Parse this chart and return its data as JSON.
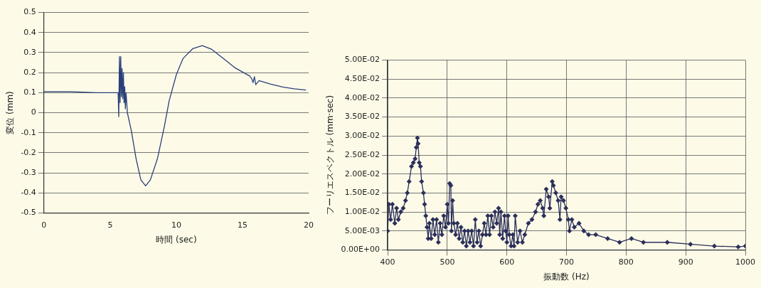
{
  "chart_data": [
    {
      "type": "line",
      "xlabel": "時間 (sec)",
      "ylabel": "変位 (mm)",
      "xlim": [
        0,
        20
      ],
      "xticks": [
        0,
        5,
        10,
        15,
        20
      ],
      "ylim": [
        -0.5,
        0.5
      ],
      "yticks": [
        -0.5,
        -0.4,
        -0.3,
        -0.2,
        -0.1,
        0,
        0.1,
        0.2,
        0.3,
        0.4,
        0.5
      ],
      "grid": "y",
      "legend": false,
      "marker": "none",
      "series": [
        {
          "color": "#2a3f7a",
          "x": [
            0,
            2,
            4,
            5.6,
            5.65,
            5.7,
            5.75,
            5.8,
            5.85,
            5.9,
            5.95,
            6.0,
            6.05,
            6.1,
            6.15,
            6.2,
            6.3,
            6.6,
            6.96,
            7.32,
            7.68,
            8.04,
            8.57,
            9.1,
            9.46,
            10.0,
            10.5,
            11.25,
            11.96,
            12.68,
            13.57,
            14.46,
            15.54,
            15.7,
            15.8,
            15.9,
            16.0,
            16.25,
            17.14,
            18.04,
            18.9,
            19.8
          ],
          "values": [
            0.105,
            0.105,
            0.1,
            0.1,
            -0.02,
            0.28,
            0.05,
            0.28,
            0.08,
            0.22,
            0.07,
            0.2,
            0.05,
            0.13,
            0.02,
            0.1,
            0.0,
            -0.09,
            -0.23,
            -0.335,
            -0.365,
            -0.335,
            -0.23,
            -0.067,
            0.06,
            0.19,
            0.27,
            0.32,
            0.335,
            0.316,
            0.27,
            0.223,
            0.183,
            0.17,
            0.15,
            0.18,
            0.14,
            0.16,
            0.142,
            0.128,
            0.119,
            0.113
          ]
        }
      ]
    },
    {
      "type": "line",
      "xlabel": "振動数 (Hz)",
      "ylabel": "フーリエスペクトル (mm·sec)",
      "xlim": [
        400,
        1000
      ],
      "xticks": [
        400,
        500,
        600,
        700,
        800,
        900,
        1000
      ],
      "ylim": [
        0,
        0.05
      ],
      "yticks": [
        {
          "value": 0,
          "label": "0.00E+00"
        },
        {
          "value": 0.005,
          "label": "5.00E-03"
        },
        {
          "value": 0.01,
          "label": "1.00E-02"
        },
        {
          "value": 0.015,
          "label": "1.50E-02"
        },
        {
          "value": 0.02,
          "label": "2.00E-02"
        },
        {
          "value": 0.025,
          "label": "2.50E-02"
        },
        {
          "value": 0.03,
          "label": "3.00E-02"
        },
        {
          "value": 0.035,
          "label": "3.50E-02"
        },
        {
          "value": 0.04,
          "label": "4.00E-02"
        },
        {
          "value": 0.045,
          "label": "4.50E-02"
        },
        {
          "value": 0.05,
          "label": "5.00E-02"
        }
      ],
      "grid": true,
      "legend": false,
      "marker": "diamond",
      "series": [
        {
          "color": "#2b2f5a",
          "x": [
            400,
            402,
            405,
            408,
            412,
            415,
            418,
            422,
            426,
            430,
            433,
            436,
            440,
            443,
            446,
            448,
            450,
            451,
            453,
            455,
            457,
            460,
            462,
            464,
            466,
            468,
            470,
            473,
            476,
            479,
            482,
            485,
            488,
            491,
            494,
            497,
            500,
            502,
            504,
            506,
            507,
            509,
            511,
            514,
            517,
            520,
            523,
            526,
            529,
            532,
            535,
            538,
            541,
            544,
            547,
            550,
            553,
            556,
            559,
            562,
            565,
            568,
            571,
            574,
            577,
            580,
            583,
            586,
            588,
            590,
            593,
            596,
            598,
            600,
            602,
            604,
            607,
            610,
            612,
            614,
            618,
            622,
            626,
            630,
            636,
            642,
            648,
            652,
            656,
            660,
            662,
            666,
            670,
            672,
            676,
            678,
            682,
            686,
            689,
            691,
            695,
            699,
            703,
            705,
            709,
            713,
            721,
            729,
            737,
            749,
            769,
            789,
            809,
            829,
            869,
            908,
            948,
            988,
            1000
          ],
          "values": [
            0.005,
            0.012,
            0.008,
            0.012,
            0.007,
            0.011,
            0.008,
            0.01,
            0.011,
            0.013,
            0.015,
            0.018,
            0.022,
            0.023,
            0.024,
            0.027,
            0.0295,
            0.028,
            0.023,
            0.022,
            0.018,
            0.015,
            0.012,
            0.009,
            0.006,
            0.003,
            0.007,
            0.003,
            0.008,
            0.004,
            0.008,
            0.002,
            0.007,
            0.004,
            0.009,
            0.006,
            0.012,
            0.007,
            0.0175,
            0.017,
            0.005,
            0.013,
            0.007,
            0.004,
            0.007,
            0.003,
            0.006,
            0.002,
            0.005,
            0.001,
            0.005,
            0.002,
            0.005,
            0.001,
            0.008,
            0.002,
            0.005,
            0.001,
            0.004,
            0.007,
            0.004,
            0.009,
            0.004,
            0.009,
            0.006,
            0.01,
            0.007,
            0.011,
            0.004,
            0.01,
            0.003,
            0.009,
            0.005,
            0.002,
            0.009,
            0.004,
            0.001,
            0.004,
            0.001,
            0.009,
            0.002,
            0.005,
            0.002,
            0.004,
            0.007,
            0.008,
            0.01,
            0.012,
            0.013,
            0.011,
            0.009,
            0.016,
            0.014,
            0.011,
            0.018,
            0.017,
            0.015,
            0.013,
            0.008,
            0.014,
            0.013,
            0.011,
            0.008,
            0.005,
            0.008,
            0.006,
            0.007,
            0.005,
            0.004,
            0.004,
            0.003,
            0.002,
            0.003,
            0.002,
            0.002,
            0.0015,
            0.001,
            0.0008,
            0.001
          ]
        }
      ]
    }
  ]
}
